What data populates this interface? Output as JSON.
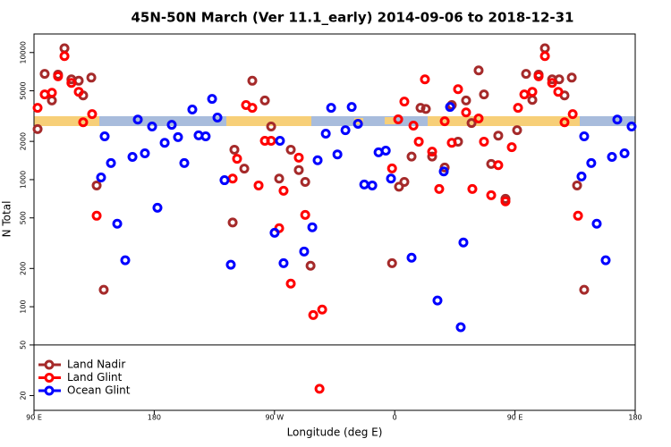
{
  "chart_data": {
    "type": "scatter",
    "title": "45N-50N March (Ver 11.1_early)   2014-09-06 to 2018-12-31",
    "x_label": "Longitude (deg E)",
    "y_label": "N Total",
    "xlim": [
      90,
      540
    ],
    "xticks": [
      {
        "value": 90,
        "label": "90 E"
      },
      180,
      {
        "value": 270,
        "label": "90 W"
      },
      {
        "value": 360,
        "label": "0"
      },
      {
        "value": 450,
        "label": "90 E"
      },
      {
        "value": 540,
        "label": "180"
      }
    ],
    "ylim": [
      15.3,
      14000
    ],
    "yticks": [
      20,
      50,
      100,
      200,
      500,
      1000,
      2000,
      5000,
      10000
    ],
    "y_log": true,
    "divider_at": 50,
    "legend": "bottom-left",
    "series": [
      {
        "name": "Land Nadir",
        "color": "#a52a2a",
        "x": [
          92.7,
          98,
          103.4,
          108,
          112.8,
          118,
          123.5,
          126.8,
          132.9,
          136.9,
          142.2,
          240,
          247.4,
          238.7,
          253.4,
          262.8,
          267.5,
          273.5,
          282.2,
          288.2,
          293,
          297,
          358,
          363.2,
          367.2,
          372.6,
          379.3,
          383.3,
          388,
          397.4,
          402.7,
          407.4,
          413.4,
          417.5,
          422.8,
          426.8,
          432.2,
          437.5,
          442.9,
          451.6,
          458.3,
          463,
          467.7,
          472.4,
          477.8,
          483.1,
          487.1,
          492.5,
          496.5,
          501.8
        ],
        "values": [
          2500,
          6800,
          4200,
          6700,
          10800,
          6150,
          6000,
          4600,
          6350,
          900,
          136,
          1720,
          1220,
          460,
          6000,
          4200,
          2620,
          1020,
          1720,
          1190,
          960,
          210,
          220,
          880,
          960,
          1520,
          3670,
          3600,
          1520,
          1245,
          3860,
          1990,
          4200,
          2790,
          7240,
          4680,
          1330,
          2220,
          706,
          2450,
          6800,
          4240,
          6700,
          10800,
          6150,
          6150,
          4600,
          6350,
          900,
          136
        ]
      },
      {
        "name": "Land Glint",
        "color": "#ff0000",
        "x": [
          92.7,
          98,
          103.4,
          108,
          112.8,
          118,
          123.5,
          126.8,
          133.5,
          136.9,
          238.7,
          242,
          248.7,
          253.4,
          258.1,
          262.8,
          267.5,
          273.5,
          276.8,
          282.2,
          288.2,
          293,
          299,
          305.7,
          303.7,
          358,
          362.6,
          367.2,
          374,
          378,
          382.6,
          388,
          393.3,
          397.4,
          402.7,
          407.4,
          413.4,
          418.1,
          422.8,
          426.8,
          432.2,
          437.5,
          442.9,
          447.6,
          452.3,
          457,
          463,
          467.7,
          472.4,
          477.8,
          482.4,
          487.1,
          493.2,
          497.2
        ],
        "values": [
          3670,
          4680,
          4830,
          6500,
          9370,
          5770,
          4910,
          2830,
          3280,
          520,
          1020,
          1460,
          3860,
          3670,
          900,
          2020,
          2020,
          415,
          817,
          152,
          1490,
          528,
          86,
          95,
          22.6,
          1225,
          2980,
          4110,
          2660,
          1990,
          6150,
          1660,
          844,
          2880,
          1950,
          5150,
          3380,
          844,
          3030,
          1990,
          754,
          1300,
          675,
          1800,
          3670,
          4680,
          4910,
          6500,
          9370,
          5770,
          4910,
          2830,
          3280,
          520
        ]
      },
      {
        "name": "Ocean Glint",
        "color": "#0000ff",
        "x": [
          140.2,
          142.9,
          147.6,
          152.3,
          158.3,
          163.7,
          167.7,
          173,
          178.4,
          182.4,
          187.8,
          193.1,
          197.8,
          202.5,
          208.5,
          213.2,
          218.5,
          223.3,
          227.3,
          232.6,
          237.3,
          270.1,
          274.1,
          276.8,
          292.2,
          298.3,
          302.3,
          308.4,
          312.4,
          317.1,
          323.1,
          327.8,
          332.5,
          337.2,
          343.2,
          347.9,
          353.3,
          357.2,
          372.6,
          392,
          396.7,
          401.4,
          409.4,
          411.4,
          499.8,
          501.8,
          507.1,
          511.2,
          517.9,
          522.6,
          526.6,
          532,
          537.3
        ],
        "values": [
          1040,
          2190,
          1350,
          450,
          232,
          1510,
          2970,
          1610,
          2620,
          601,
          1950,
          2700,
          2160,
          1350,
          3560,
          2230,
          2190,
          4320,
          3080,
          990,
          214,
          382,
          2020,
          220,
          272,
          422,
          1420,
          2300,
          3670,
          1580,
          2450,
          3730,
          2750,
          915,
          900,
          1640,
          1690,
          1020,
          243,
          112,
          1160,
          3730,
          69,
          320,
          1060,
          2190,
          1350,
          450,
          232,
          1510,
          2970,
          1610,
          2620
        ]
      }
    ]
  }
}
